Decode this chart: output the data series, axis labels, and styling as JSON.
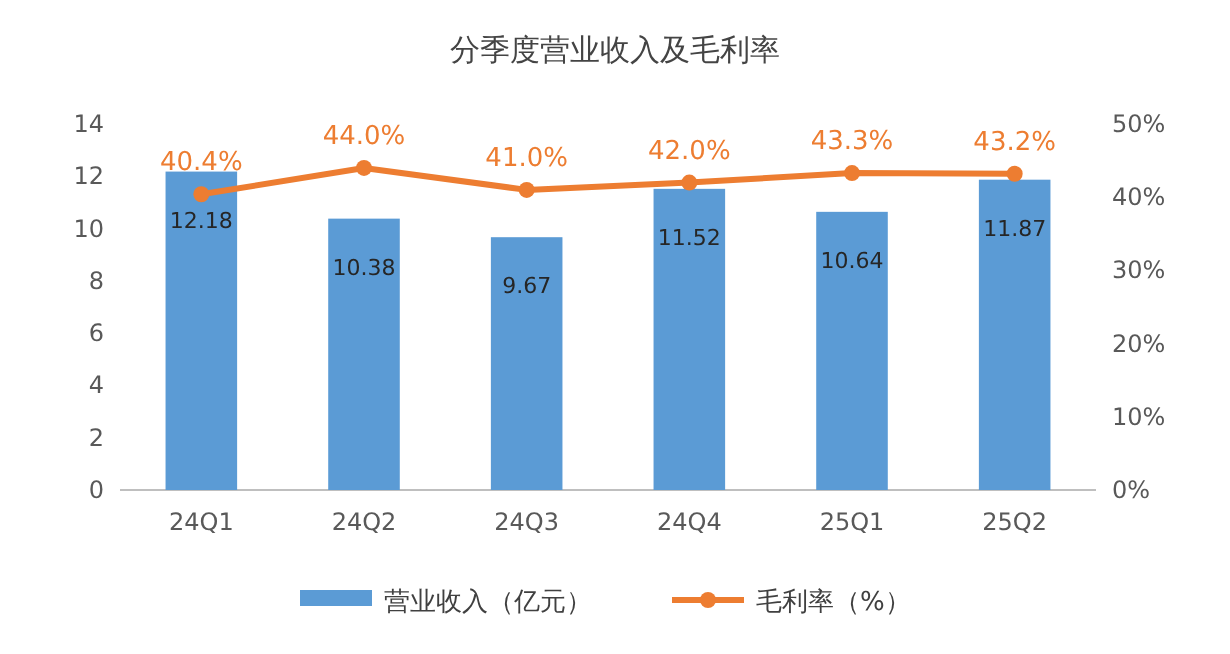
{
  "chart_data": {
    "type": "bar",
    "title": "分季度营业收入及毛利率",
    "categories": [
      "24Q1",
      "24Q2",
      "24Q3",
      "24Q4",
      "25Q1",
      "25Q2"
    ],
    "series": [
      {
        "name": "营业收入（亿元）",
        "color": "#5b9bd5",
        "values": [
          12.18,
          10.38,
          9.67,
          11.52,
          10.64,
          11.87
        ],
        "value_labels": [
          "12.18",
          "10.38",
          "9.67",
          "11.52",
          "10.64",
          "11.87"
        ]
      },
      {
        "name": "毛利率（%）",
        "type": "line",
        "axis": "y2",
        "color": "#ed7d31",
        "marker": "circle",
        "values": [
          40.4,
          44.0,
          41.0,
          42.0,
          43.3,
          43.2
        ],
        "value_labels": [
          "40.4%",
          "44.0%",
          "41.0%",
          "42.0%",
          "43.3%",
          "43.2%"
        ]
      }
    ],
    "ylim": [
      0,
      14
    ],
    "yticks": [
      0,
      2,
      4,
      6,
      8,
      10,
      12,
      14
    ],
    "y2lim": [
      0,
      50
    ],
    "y2ticks": [
      {
        "value": 0,
        "label": "0%"
      },
      {
        "value": 10,
        "label": "10%"
      },
      {
        "value": 20,
        "label": "20%"
      },
      {
        "value": 30,
        "label": "30%"
      },
      {
        "value": 40,
        "label": "40%"
      },
      {
        "value": 50,
        "label": "50%"
      }
    ],
    "grid": false,
    "legend": "bottom"
  }
}
